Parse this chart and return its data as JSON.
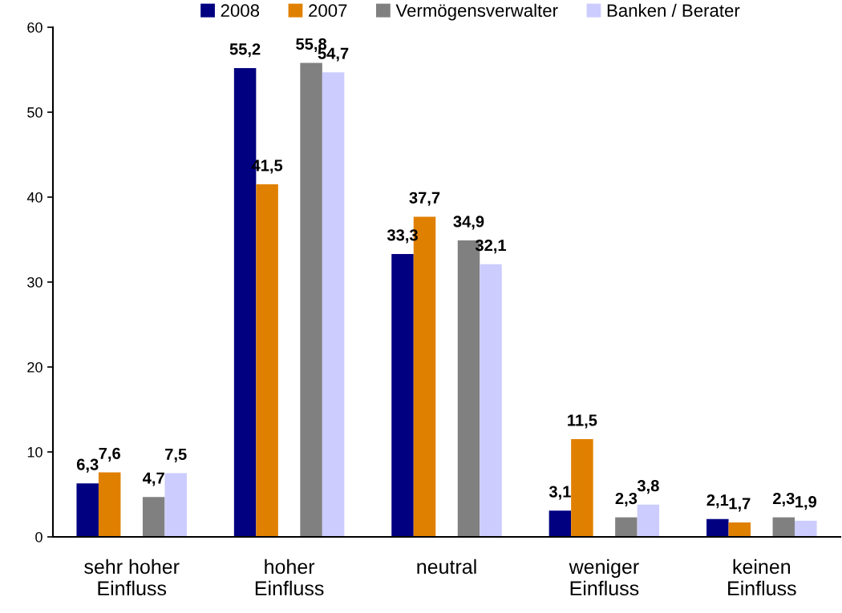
{
  "chart_data": {
    "type": "bar",
    "categories": [
      "sehr hoher\nEinfluss",
      "hoher\nEinfluss",
      "neutral",
      "weniger\nEinfluss",
      "keinen\nEinfluss"
    ],
    "series": [
      {
        "name": "2008",
        "color": "#000080",
        "values": [
          6.3,
          55.2,
          33.3,
          3.1,
          2.1
        ],
        "value_labels": [
          "6,3",
          "55,2",
          "33,3",
          "3,1",
          "2,1"
        ]
      },
      {
        "name": "2007",
        "color": "#e08000",
        "values": [
          7.6,
          41.5,
          37.7,
          11.5,
          1.7
        ],
        "value_labels": [
          "7,6",
          "41,5",
          "37,7",
          "11,5",
          "1,7"
        ]
      },
      {
        "values": [
          null,
          null,
          null,
          null,
          null
        ]
      },
      {
        "name": "Vermögensverwalter",
        "color": "#808080",
        "values": [
          4.7,
          55.8,
          34.9,
          2.3,
          2.3
        ],
        "value_labels": [
          "4,7",
          "55,8",
          "34,9",
          "2,3",
          "2,3"
        ]
      },
      {
        "name": "Banken / Berater",
        "color": "#ccccff",
        "values": [
          7.5,
          54.7,
          32.1,
          3.8,
          1.9
        ],
        "value_labels": [
          "7,5",
          "54,7",
          "32,1",
          "3,8",
          "1,9"
        ]
      }
    ],
    "ylim": [
      0,
      60
    ],
    "yticks": [
      0,
      10,
      20,
      30,
      40,
      50,
      60
    ],
    "grid": false,
    "legend": "top"
  }
}
